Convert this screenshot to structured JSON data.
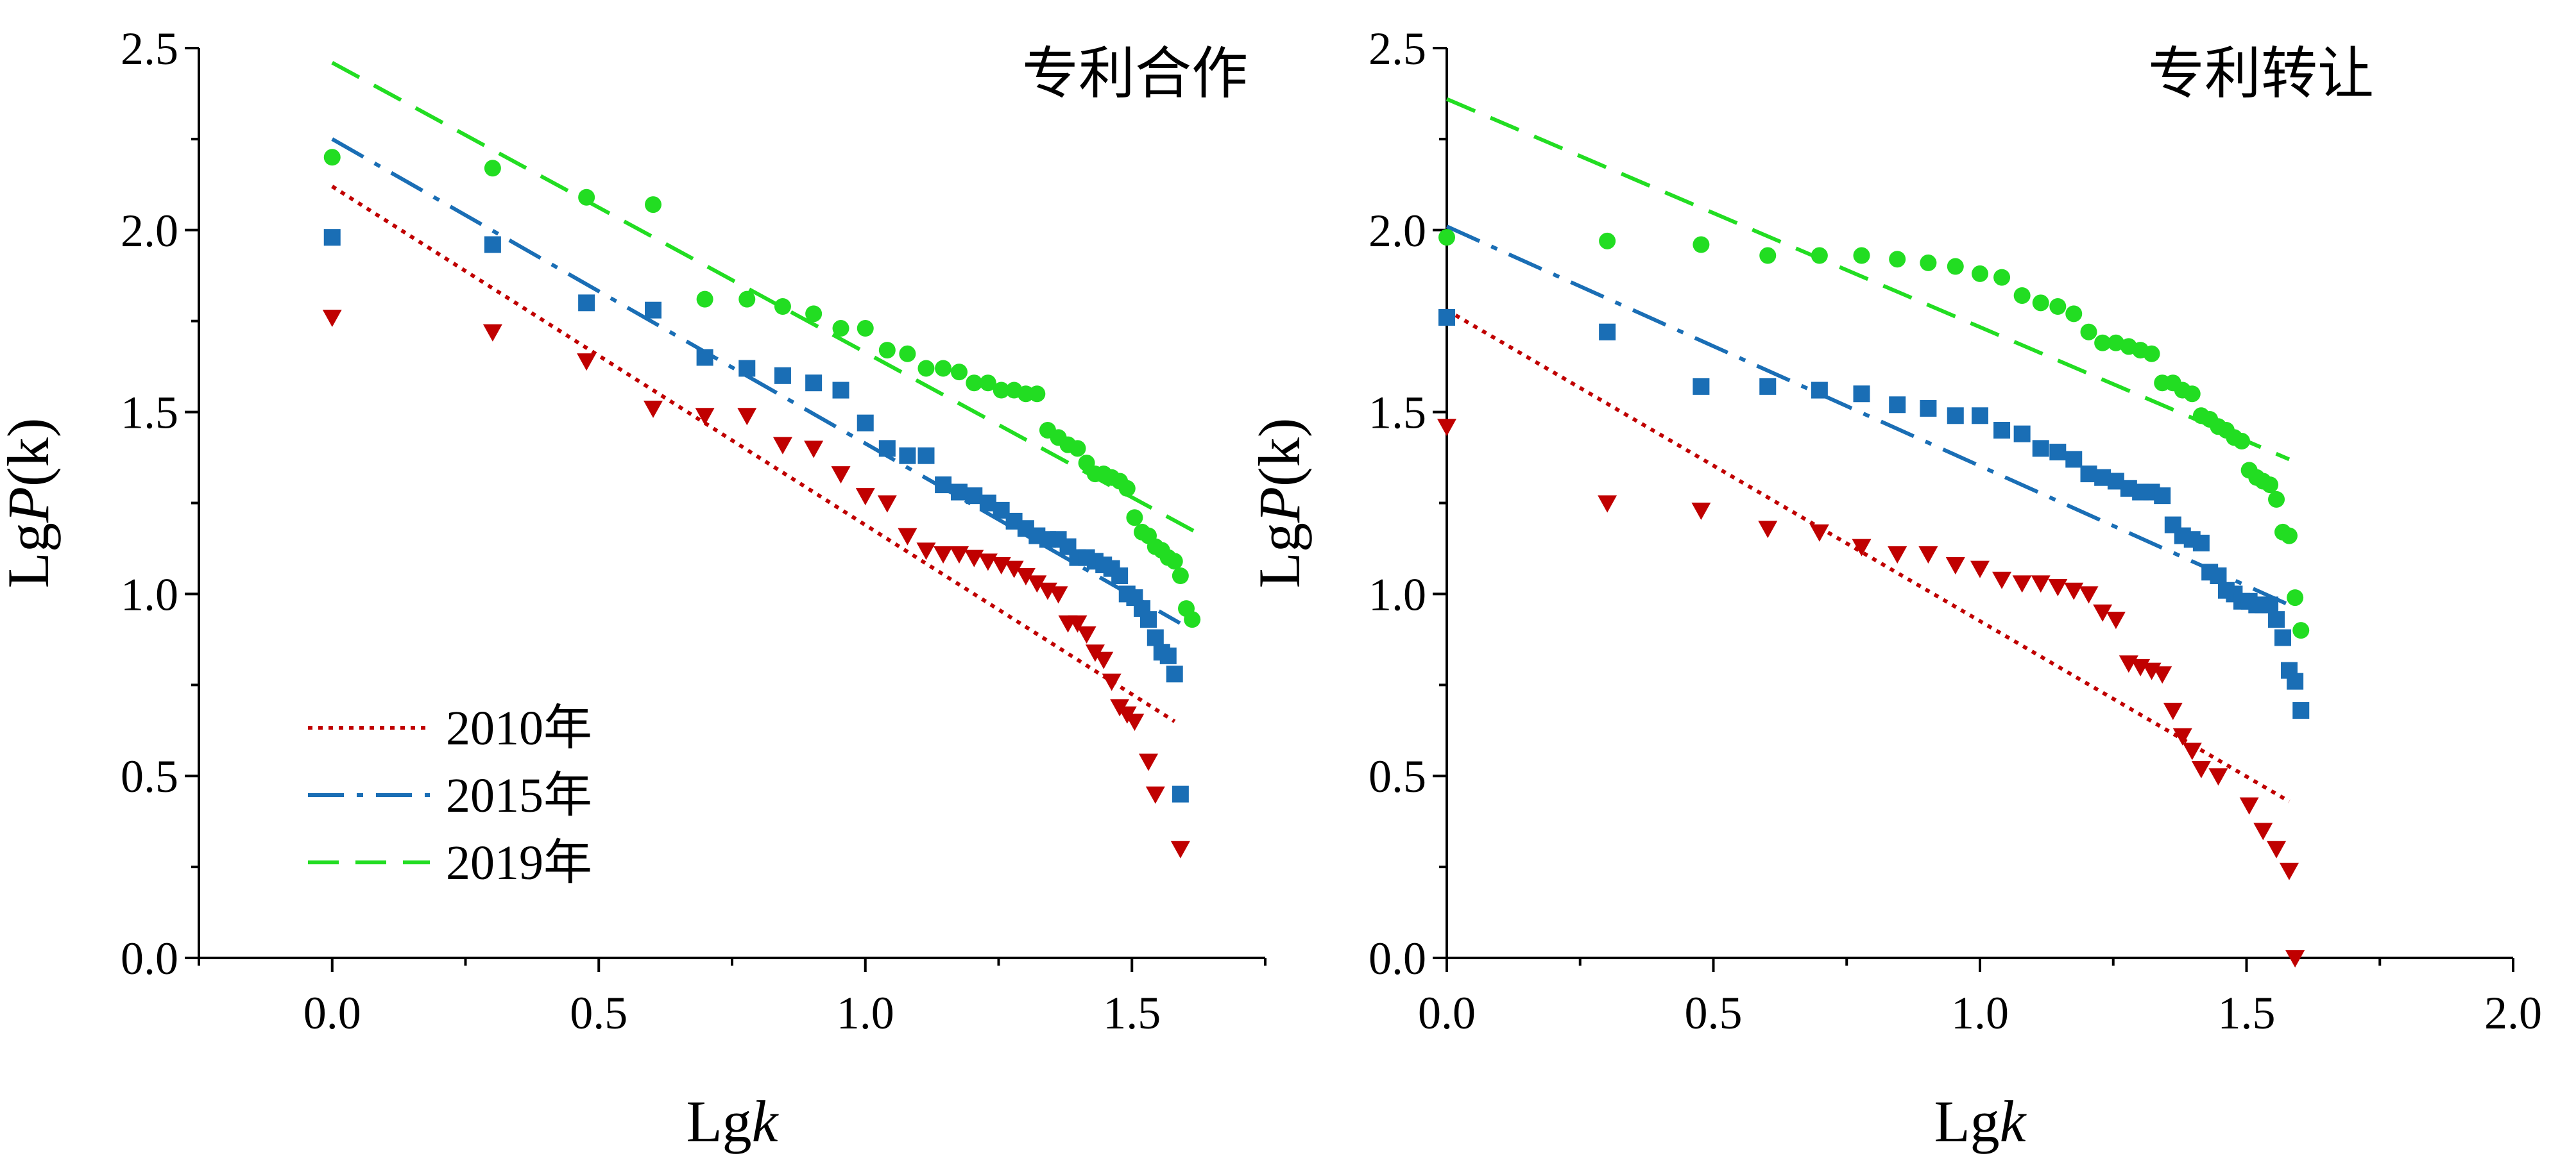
{
  "colors": {
    "y2010": "#c00000",
    "y2015": "#1a6eb5",
    "y2019": "#22dd22"
  },
  "chart_data": [
    {
      "type": "scatter",
      "title": "专利合作",
      "xlabel_prefix": "Lg",
      "xlabel_var": "k",
      "ylabel_prefix": "Lg",
      "ylabel_var": "P",
      "ylabel_suffix": "(k)",
      "xlim": [
        -0.25,
        1.75
      ],
      "ylim": [
        0,
        2.5
      ],
      "xticks": [
        0.0,
        0.5,
        1.0,
        1.5
      ],
      "xtick_labels": [
        "0.0",
        "0.5",
        "1.0",
        "1.5"
      ],
      "yticks": [
        0.0,
        0.5,
        1.0,
        1.5,
        2.0,
        2.5
      ],
      "ytick_labels": [
        "0.0",
        "0.5",
        "1.0",
        "1.5",
        "2.0",
        "2.5"
      ],
      "legend": {
        "position": "bottom-left",
        "entries": [
          {
            "label": "2010年",
            "series": "y2010"
          },
          {
            "label": "2015年",
            "series": "y2015"
          },
          {
            "label": "2019年",
            "series": "y2019"
          }
        ]
      },
      "series": [
        {
          "key": "y2019",
          "marker": "circle",
          "line": "dashed",
          "fit": [
            [
              0,
              2.46
            ],
            [
              1.62,
              1.17
            ]
          ],
          "points": [
            [
              0,
              2.2
            ],
            [
              0.301,
              2.17
            ],
            [
              0.477,
              2.09
            ],
            [
              0.602,
              2.07
            ],
            [
              0.699,
              1.81
            ],
            [
              0.778,
              1.81
            ],
            [
              0.845,
              1.79
            ],
            [
              0.903,
              1.77
            ],
            [
              0.954,
              1.73
            ],
            [
              1.0,
              1.73
            ],
            [
              1.041,
              1.67
            ],
            [
              1.079,
              1.66
            ],
            [
              1.114,
              1.62
            ],
            [
              1.146,
              1.62
            ],
            [
              1.176,
              1.61
            ],
            [
              1.204,
              1.58
            ],
            [
              1.23,
              1.58
            ],
            [
              1.255,
              1.56
            ],
            [
              1.279,
              1.56
            ],
            [
              1.301,
              1.55
            ],
            [
              1.322,
              1.55
            ],
            [
              1.342,
              1.45
            ],
            [
              1.362,
              1.43
            ],
            [
              1.38,
              1.41
            ],
            [
              1.398,
              1.4
            ],
            [
              1.415,
              1.36
            ],
            [
              1.431,
              1.33
            ],
            [
              1.447,
              1.33
            ],
            [
              1.462,
              1.32
            ],
            [
              1.477,
              1.31
            ],
            [
              1.491,
              1.29
            ],
            [
              1.505,
              1.21
            ],
            [
              1.519,
              1.17
            ],
            [
              1.531,
              1.16
            ],
            [
              1.544,
              1.13
            ],
            [
              1.556,
              1.12
            ],
            [
              1.568,
              1.1
            ],
            [
              1.58,
              1.09
            ],
            [
              1.591,
              1.05
            ],
            [
              1.602,
              0.96
            ],
            [
              1.613,
              0.93
            ]
          ]
        },
        {
          "key": "y2015",
          "marker": "square",
          "line": "dashdot",
          "fit": [
            [
              0,
              2.25
            ],
            [
              1.59,
              0.92
            ]
          ],
          "points": [
            [
              0,
              1.98
            ],
            [
              0.301,
              1.96
            ],
            [
              0.477,
              1.8
            ],
            [
              0.602,
              1.78
            ],
            [
              0.699,
              1.65
            ],
            [
              0.778,
              1.62
            ],
            [
              0.845,
              1.6
            ],
            [
              0.903,
              1.58
            ],
            [
              0.954,
              1.56
            ],
            [
              1.0,
              1.47
            ],
            [
              1.041,
              1.4
            ],
            [
              1.079,
              1.38
            ],
            [
              1.114,
              1.38
            ],
            [
              1.146,
              1.3
            ],
            [
              1.176,
              1.28
            ],
            [
              1.204,
              1.27
            ],
            [
              1.23,
              1.25
            ],
            [
              1.255,
              1.23
            ],
            [
              1.279,
              1.2
            ],
            [
              1.301,
              1.18
            ],
            [
              1.322,
              1.16
            ],
            [
              1.342,
              1.15
            ],
            [
              1.362,
              1.15
            ],
            [
              1.38,
              1.13
            ],
            [
              1.398,
              1.1
            ],
            [
              1.415,
              1.1
            ],
            [
              1.431,
              1.09
            ],
            [
              1.447,
              1.08
            ],
            [
              1.462,
              1.07
            ],
            [
              1.477,
              1.05
            ],
            [
              1.491,
              1.0
            ],
            [
              1.505,
              0.99
            ],
            [
              1.519,
              0.96
            ],
            [
              1.531,
              0.93
            ],
            [
              1.544,
              0.88
            ],
            [
              1.556,
              0.84
            ],
            [
              1.568,
              0.83
            ],
            [
              1.58,
              0.78
            ],
            [
              1.591,
              0.45
            ]
          ]
        },
        {
          "key": "y2010",
          "marker": "triangle-down",
          "line": "dotted",
          "fit": [
            [
              0,
              2.12
            ],
            [
              1.58,
              0.65
            ]
          ],
          "points": [
            [
              0,
              1.76
            ],
            [
              0.301,
              1.72
            ],
            [
              0.477,
              1.64
            ],
            [
              0.602,
              1.51
            ],
            [
              0.699,
              1.49
            ],
            [
              0.778,
              1.49
            ],
            [
              0.845,
              1.41
            ],
            [
              0.903,
              1.4
            ],
            [
              0.954,
              1.33
            ],
            [
              1.0,
              1.27
            ],
            [
              1.041,
              1.25
            ],
            [
              1.079,
              1.16
            ],
            [
              1.114,
              1.12
            ],
            [
              1.146,
              1.11
            ],
            [
              1.176,
              1.11
            ],
            [
              1.204,
              1.1
            ],
            [
              1.23,
              1.09
            ],
            [
              1.255,
              1.08
            ],
            [
              1.279,
              1.07
            ],
            [
              1.301,
              1.05
            ],
            [
              1.322,
              1.03
            ],
            [
              1.342,
              1.01
            ],
            [
              1.362,
              1.0
            ],
            [
              1.38,
              0.92
            ],
            [
              1.398,
              0.92
            ],
            [
              1.415,
              0.89
            ],
            [
              1.431,
              0.84
            ],
            [
              1.447,
              0.82
            ],
            [
              1.462,
              0.76
            ],
            [
              1.477,
              0.69
            ],
            [
              1.491,
              0.67
            ],
            [
              1.505,
              0.65
            ],
            [
              1.531,
              0.54
            ],
            [
              1.544,
              0.45
            ],
            [
              1.591,
              0.3
            ]
          ]
        }
      ]
    },
    {
      "type": "scatter",
      "title": "专利转让",
      "xlabel_prefix": "Lg",
      "xlabel_var": "k",
      "ylabel_prefix": "Lg",
      "ylabel_var": "P",
      "ylabel_suffix": "(k)",
      "xlim": [
        0,
        2.0
      ],
      "ylim": [
        0,
        2.5
      ],
      "xticks": [
        0.0,
        0.5,
        1.0,
        1.5,
        2.0
      ],
      "xtick_labels": [
        "0.0",
        "0.5",
        "1.0",
        "1.5",
        "2.0"
      ],
      "yticks": [
        0.0,
        0.5,
        1.0,
        1.5,
        2.0,
        2.5
      ],
      "ytick_labels": [
        "0.0",
        "0.5",
        "1.0",
        "1.5",
        "2.0",
        "2.5"
      ],
      "series": [
        {
          "key": "y2019",
          "marker": "circle",
          "line": "dashed",
          "fit": [
            [
              0,
              2.36
            ],
            [
              1.58,
              1.37
            ]
          ],
          "points": [
            [
              0,
              1.98
            ],
            [
              0.301,
              1.97
            ],
            [
              0.477,
              1.96
            ],
            [
              0.602,
              1.93
            ],
            [
              0.699,
              1.93
            ],
            [
              0.778,
              1.93
            ],
            [
              0.845,
              1.92
            ],
            [
              0.903,
              1.91
            ],
            [
              0.954,
              1.9
            ],
            [
              1.0,
              1.88
            ],
            [
              1.041,
              1.87
            ],
            [
              1.079,
              1.82
            ],
            [
              1.114,
              1.8
            ],
            [
              1.146,
              1.79
            ],
            [
              1.176,
              1.77
            ],
            [
              1.204,
              1.72
            ],
            [
              1.23,
              1.69
            ],
            [
              1.255,
              1.69
            ],
            [
              1.279,
              1.68
            ],
            [
              1.301,
              1.67
            ],
            [
              1.322,
              1.66
            ],
            [
              1.342,
              1.58
            ],
            [
              1.362,
              1.58
            ],
            [
              1.38,
              1.56
            ],
            [
              1.398,
              1.55
            ],
            [
              1.415,
              1.49
            ],
            [
              1.431,
              1.48
            ],
            [
              1.447,
              1.46
            ],
            [
              1.462,
              1.45
            ],
            [
              1.477,
              1.43
            ],
            [
              1.491,
              1.42
            ],
            [
              1.505,
              1.34
            ],
            [
              1.519,
              1.32
            ],
            [
              1.531,
              1.31
            ],
            [
              1.544,
              1.3
            ],
            [
              1.556,
              1.26
            ],
            [
              1.568,
              1.17
            ],
            [
              1.58,
              1.16
            ],
            [
              1.591,
              0.99
            ],
            [
              1.602,
              0.9
            ]
          ]
        },
        {
          "key": "y2015",
          "marker": "square",
          "line": "dashdot",
          "fit": [
            [
              0,
              2.01
            ],
            [
              1.58,
              0.97
            ]
          ],
          "points": [
            [
              0,
              1.76
            ],
            [
              0.301,
              1.72
            ],
            [
              0.477,
              1.57
            ],
            [
              0.602,
              1.57
            ],
            [
              0.699,
              1.56
            ],
            [
              0.778,
              1.55
            ],
            [
              0.845,
              1.52
            ],
            [
              0.903,
              1.51
            ],
            [
              0.954,
              1.49
            ],
            [
              1.0,
              1.49
            ],
            [
              1.041,
              1.45
            ],
            [
              1.079,
              1.44
            ],
            [
              1.114,
              1.4
            ],
            [
              1.146,
              1.39
            ],
            [
              1.176,
              1.37
            ],
            [
              1.204,
              1.33
            ],
            [
              1.23,
              1.32
            ],
            [
              1.255,
              1.31
            ],
            [
              1.279,
              1.29
            ],
            [
              1.301,
              1.28
            ],
            [
              1.322,
              1.28
            ],
            [
              1.342,
              1.27
            ],
            [
              1.362,
              1.19
            ],
            [
              1.38,
              1.16
            ],
            [
              1.398,
              1.15
            ],
            [
              1.415,
              1.14
            ],
            [
              1.431,
              1.06
            ],
            [
              1.447,
              1.05
            ],
            [
              1.462,
              1.01
            ],
            [
              1.477,
              1.0
            ],
            [
              1.491,
              0.98
            ],
            [
              1.505,
              0.98
            ],
            [
              1.519,
              0.97
            ],
            [
              1.531,
              0.97
            ],
            [
              1.544,
              0.97
            ],
            [
              1.556,
              0.93
            ],
            [
              1.568,
              0.88
            ],
            [
              1.58,
              0.79
            ],
            [
              1.591,
              0.76
            ],
            [
              1.602,
              0.68
            ]
          ]
        },
        {
          "key": "y2010",
          "marker": "triangle-down",
          "line": "dotted",
          "fit": [
            [
              0,
              1.78
            ],
            [
              1.58,
              0.43
            ]
          ],
          "points": [
            [
              0,
              1.46
            ],
            [
              0.301,
              1.25
            ],
            [
              0.477,
              1.23
            ],
            [
              0.602,
              1.18
            ],
            [
              0.699,
              1.17
            ],
            [
              0.778,
              1.13
            ],
            [
              0.845,
              1.11
            ],
            [
              0.903,
              1.11
            ],
            [
              0.954,
              1.08
            ],
            [
              1.0,
              1.07
            ],
            [
              1.041,
              1.04
            ],
            [
              1.079,
              1.03
            ],
            [
              1.114,
              1.03
            ],
            [
              1.146,
              1.02
            ],
            [
              1.176,
              1.01
            ],
            [
              1.204,
              1.0
            ],
            [
              1.23,
              0.95
            ],
            [
              1.255,
              0.93
            ],
            [
              1.279,
              0.81
            ],
            [
              1.301,
              0.8
            ],
            [
              1.322,
              0.79
            ],
            [
              1.342,
              0.78
            ],
            [
              1.362,
              0.68
            ],
            [
              1.38,
              0.61
            ],
            [
              1.398,
              0.57
            ],
            [
              1.415,
              0.52
            ],
            [
              1.447,
              0.5
            ],
            [
              1.505,
              0.42
            ],
            [
              1.531,
              0.35
            ],
            [
              1.556,
              0.3
            ],
            [
              1.58,
              0.24
            ],
            [
              1.591,
              0.0
            ]
          ]
        }
      ]
    }
  ]
}
